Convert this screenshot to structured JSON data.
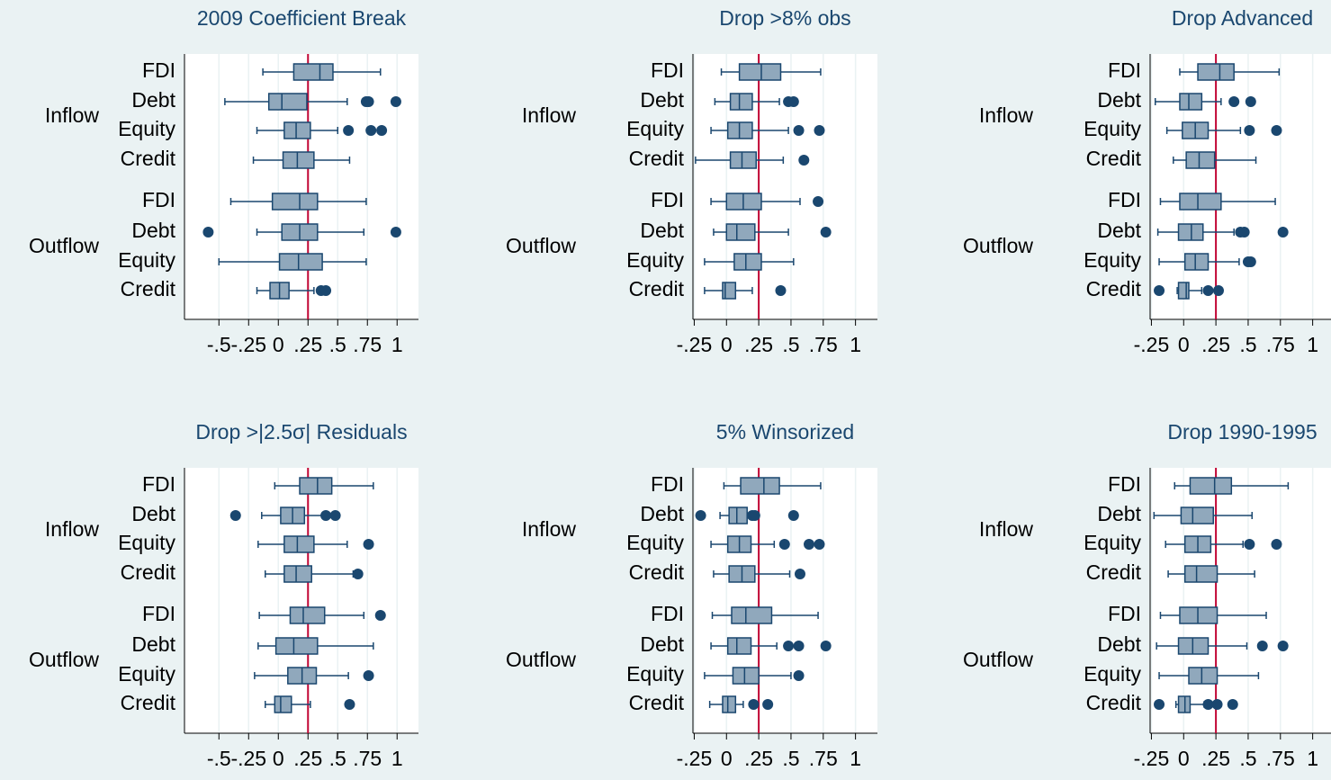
{
  "chart_data": [
    {
      "type": "boxplot",
      "title": "2009 Coefficient Break",
      "xlim": [
        -0.79,
        1.18
      ],
      "xticks": [
        {
          "value": -0.5,
          "label": "-.5"
        },
        {
          "value": -0.25,
          "label": "-.25"
        },
        0,
        {
          "value": 0.25,
          "label": ".25"
        },
        {
          "value": 0.5,
          "label": ".5"
        },
        {
          "value": 0.75,
          "label": ".75"
        },
        1
      ],
      "reference_line": 0.25,
      "color": "#90a8bc",
      "edge_color": "#1a476f",
      "reference_color": "#c10534",
      "grid": true,
      "groups": [
        {
          "label": "Inflow",
          "categories": [
            "FDI",
            "Debt",
            "Equity",
            "Credit"
          ],
          "boxes": [
            {
              "whisker_low": -0.13,
              "q1": 0.13,
              "median": 0.35,
              "q3": 0.46,
              "whisker_high": 0.86,
              "outliers": []
            },
            {
              "whisker_low": -0.45,
              "q1": -0.08,
              "median": 0.03,
              "q3": 0.24,
              "whisker_high": 0.58,
              "outliers": [
                0.74,
                0.76,
                0.99
              ]
            },
            {
              "whisker_low": -0.18,
              "q1": 0.05,
              "median": 0.15,
              "q3": 0.27,
              "whisker_high": 0.5,
              "outliers": [
                0.59,
                0.78,
                0.87
              ]
            },
            {
              "whisker_low": -0.21,
              "q1": 0.04,
              "median": 0.16,
              "q3": 0.3,
              "whisker_high": 0.6,
              "outliers": []
            }
          ]
        },
        {
          "label": "Outflow",
          "categories": [
            "FDI",
            "Debt",
            "Equity",
            "Credit"
          ],
          "boxes": [
            {
              "whisker_low": -0.4,
              "q1": -0.05,
              "median": 0.18,
              "q3": 0.33,
              "whisker_high": 0.74,
              "outliers": []
            },
            {
              "whisker_low": -0.18,
              "q1": 0.03,
              "median": 0.18,
              "q3": 0.33,
              "whisker_high": 0.72,
              "outliers": [
                -0.59,
                0.99
              ]
            },
            {
              "whisker_low": -0.5,
              "q1": 0.01,
              "median": 0.17,
              "q3": 0.37,
              "whisker_high": 0.74,
              "outliers": []
            },
            {
              "whisker_low": -0.18,
              "q1": -0.07,
              "median": 0.01,
              "q3": 0.09,
              "whisker_high": 0.3,
              "outliers": [
                0.36,
                0.4
              ]
            }
          ]
        }
      ]
    },
    {
      "type": "boxplot",
      "title": "Drop >8% obs",
      "xlim": [
        -0.26,
        1.17
      ],
      "xticks": [
        {
          "value": -0.25,
          "label": "-.25"
        },
        0,
        {
          "value": 0.25,
          "label": ".25"
        },
        {
          "value": 0.5,
          "label": ".5"
        },
        {
          "value": 0.75,
          "label": ".75"
        },
        1
      ],
      "reference_line": 0.25,
      "color": "#90a8bc",
      "edge_color": "#1a476f",
      "reference_color": "#c10534",
      "grid": true,
      "groups": [
        {
          "label": "Inflow",
          "categories": [
            "FDI",
            "Debt",
            "Equity",
            "Credit"
          ],
          "boxes": [
            {
              "whisker_low": -0.04,
              "q1": 0.1,
              "median": 0.27,
              "q3": 0.42,
              "whisker_high": 0.73,
              "outliers": []
            },
            {
              "whisker_low": -0.09,
              "q1": 0.03,
              "median": 0.1,
              "q3": 0.2,
              "whisker_high": 0.41,
              "outliers": [
                0.48,
                0.52
              ]
            },
            {
              "whisker_low": -0.12,
              "q1": 0.01,
              "median": 0.1,
              "q3": 0.2,
              "whisker_high": 0.48,
              "outliers": [
                0.56,
                0.72
              ]
            },
            {
              "whisker_low": -0.24,
              "q1": 0.03,
              "median": 0.12,
              "q3": 0.23,
              "whisker_high": 0.44,
              "outliers": [
                0.6
              ]
            }
          ]
        },
        {
          "label": "Outflow",
          "categories": [
            "FDI",
            "Debt",
            "Equity",
            "Credit"
          ],
          "boxes": [
            {
              "whisker_low": -0.12,
              "q1": 0,
              "median": 0.13,
              "q3": 0.27,
              "whisker_high": 0.57,
              "outliers": [
                0.71
              ]
            },
            {
              "whisker_low": -0.1,
              "q1": 0,
              "median": 0.08,
              "q3": 0.22,
              "whisker_high": 0.48,
              "outliers": [
                0.77
              ]
            },
            {
              "whisker_low": -0.17,
              "q1": 0.06,
              "median": 0.15,
              "q3": 0.27,
              "whisker_high": 0.52,
              "outliers": []
            },
            {
              "whisker_low": -0.17,
              "q1": -0.03,
              "median": -0.01,
              "q3": 0.07,
              "whisker_high": 0.2,
              "outliers": [
                0.42
              ]
            }
          ]
        }
      ]
    },
    {
      "type": "boxplot",
      "title": "Drop Advanced",
      "xlim": [
        -0.26,
        1.17
      ],
      "xticks": [
        {
          "value": -0.25,
          "label": "-.25"
        },
        0,
        {
          "value": 0.25,
          "label": ".25"
        },
        {
          "value": 0.5,
          "label": ".5"
        },
        {
          "value": 0.75,
          "label": ".75"
        },
        1
      ],
      "reference_line": 0.25,
      "color": "#90a8bc",
      "edge_color": "#1a476f",
      "reference_color": "#c10534",
      "grid": true,
      "groups": [
        {
          "label": "Inflow",
          "categories": [
            "FDI",
            "Debt",
            "Equity",
            "Credit"
          ],
          "boxes": [
            {
              "whisker_low": -0.03,
              "q1": 0.11,
              "median": 0.28,
              "q3": 0.39,
              "whisker_high": 0.74,
              "outliers": []
            },
            {
              "whisker_low": -0.22,
              "q1": -0.03,
              "median": 0.04,
              "q3": 0.14,
              "whisker_high": 0.29,
              "outliers": [
                0.39,
                0.52
              ]
            },
            {
              "whisker_low": -0.13,
              "q1": -0.01,
              "median": 0.09,
              "q3": 0.19,
              "whisker_high": 0.44,
              "outliers": [
                0.51,
                0.72
              ]
            },
            {
              "whisker_low": -0.08,
              "q1": 0.02,
              "median": 0.12,
              "q3": 0.24,
              "whisker_high": 0.56,
              "outliers": []
            }
          ]
        },
        {
          "label": "Outflow",
          "categories": [
            "FDI",
            "Debt",
            "Equity",
            "Credit"
          ],
          "boxes": [
            {
              "whisker_low": -0.18,
              "q1": -0.03,
              "median": 0.11,
              "q3": 0.29,
              "whisker_high": 0.71,
              "outliers": []
            },
            {
              "whisker_low": -0.2,
              "q1": -0.04,
              "median": 0.06,
              "q3": 0.15,
              "whisker_high": 0.39,
              "outliers": [
                0.44,
                0.47,
                0.77
              ]
            },
            {
              "whisker_low": -0.19,
              "q1": 0.01,
              "median": 0.09,
              "q3": 0.19,
              "whisker_high": 0.43,
              "outliers": [
                0.5,
                0.52
              ]
            },
            {
              "whisker_low": -0.05,
              "q1": -0.04,
              "median": 0.02,
              "q3": 0.04,
              "whisker_high": 0.14,
              "outliers": [
                -0.19,
                0.19,
                0.27
              ]
            }
          ]
        }
      ]
    },
    {
      "type": "boxplot",
      "title": "Drop >|2.5σ| Residuals",
      "xlim": [
        -0.79,
        1.18
      ],
      "xticks": [
        {
          "value": -0.5,
          "label": "-.5"
        },
        {
          "value": -0.25,
          "label": "-.25"
        },
        0,
        {
          "value": 0.25,
          "label": ".25"
        },
        {
          "value": 0.5,
          "label": ".5"
        },
        {
          "value": 0.75,
          "label": ".75"
        },
        1
      ],
      "reference_line": 0.25,
      "color": "#90a8bc",
      "edge_color": "#1a476f",
      "reference_color": "#c10534",
      "grid": true,
      "groups": [
        {
          "label": "Inflow",
          "categories": [
            "FDI",
            "Debt",
            "Equity",
            "Credit"
          ],
          "boxes": [
            {
              "whisker_low": -0.03,
              "q1": 0.18,
              "median": 0.33,
              "q3": 0.45,
              "whisker_high": 0.8,
              "outliers": []
            },
            {
              "whisker_low": -0.14,
              "q1": 0.02,
              "median": 0.12,
              "q3": 0.22,
              "whisker_high": 0.5,
              "outliers": [
                -0.36,
                0.4,
                0.48
              ]
            },
            {
              "whisker_low": -0.17,
              "q1": 0.05,
              "median": 0.16,
              "q3": 0.3,
              "whisker_high": 0.58,
              "outliers": [
                0.76
              ]
            },
            {
              "whisker_low": -0.11,
              "q1": 0.05,
              "median": 0.15,
              "q3": 0.28,
              "whisker_high": 0.63,
              "outliers": [
                0.67
              ]
            }
          ]
        },
        {
          "label": "Outflow",
          "categories": [
            "FDI",
            "Debt",
            "Equity",
            "Credit"
          ],
          "boxes": [
            {
              "whisker_low": -0.16,
              "q1": 0.1,
              "median": 0.21,
              "q3": 0.39,
              "whisker_high": 0.72,
              "outliers": [
                0.86
              ]
            },
            {
              "whisker_low": -0.17,
              "q1": -0.02,
              "median": 0.13,
              "q3": 0.33,
              "whisker_high": 0.8,
              "outliers": []
            },
            {
              "whisker_low": -0.2,
              "q1": 0.08,
              "median": 0.2,
              "q3": 0.32,
              "whisker_high": 0.59,
              "outliers": [
                0.76
              ]
            },
            {
              "whisker_low": -0.11,
              "q1": -0.03,
              "median": 0.02,
              "q3": 0.11,
              "whisker_high": 0.27,
              "outliers": [
                0.6
              ]
            }
          ]
        }
      ]
    },
    {
      "type": "boxplot",
      "title": "5% Winsorized",
      "xlim": [
        -0.26,
        1.17
      ],
      "xticks": [
        {
          "value": -0.25,
          "label": "-.25"
        },
        0,
        {
          "value": 0.25,
          "label": ".25"
        },
        {
          "value": 0.5,
          "label": ".5"
        },
        {
          "value": 0.75,
          "label": ".75"
        },
        1
      ],
      "reference_line": 0.25,
      "color": "#90a8bc",
      "edge_color": "#1a476f",
      "reference_color": "#c10534",
      "grid": true,
      "groups": [
        {
          "label": "Inflow",
          "categories": [
            "FDI",
            "Debt",
            "Equity",
            "Credit"
          ],
          "boxes": [
            {
              "whisker_low": -0.02,
              "q1": 0.11,
              "median": 0.29,
              "q3": 0.41,
              "whisker_high": 0.73,
              "outliers": []
            },
            {
              "whisker_low": -0.05,
              "q1": 0.02,
              "median": 0.08,
              "q3": 0.16,
              "whisker_high": 0.18,
              "outliers": [
                -0.2,
                0.2,
                0.22,
                0.52
              ]
            },
            {
              "whisker_low": -0.12,
              "q1": 0.01,
              "median": 0.1,
              "q3": 0.19,
              "whisker_high": 0.37,
              "outliers": [
                0.45,
                0.64,
                0.72
              ]
            },
            {
              "whisker_low": -0.1,
              "q1": 0.02,
              "median": 0.12,
              "q3": 0.22,
              "whisker_high": 0.49,
              "outliers": [
                0.57
              ]
            }
          ]
        },
        {
          "label": "Outflow",
          "categories": [
            "FDI",
            "Debt",
            "Equity",
            "Credit"
          ],
          "boxes": [
            {
              "whisker_low": -0.11,
              "q1": 0.04,
              "median": 0.15,
              "q3": 0.35,
              "whisker_high": 0.71,
              "outliers": []
            },
            {
              "whisker_low": -0.12,
              "q1": 0.01,
              "median": 0.08,
              "q3": 0.19,
              "whisker_high": 0.39,
              "outliers": [
                0.48,
                0.56,
                0.77
              ]
            },
            {
              "whisker_low": -0.17,
              "q1": 0.05,
              "median": 0.14,
              "q3": 0.25,
              "whisker_high": 0.5,
              "outliers": [
                0.56
              ]
            },
            {
              "whisker_low": -0.13,
              "q1": -0.03,
              "median": 0.01,
              "q3": 0.07,
              "whisker_high": 0.13,
              "outliers": [
                0.21,
                0.32
              ]
            }
          ]
        }
      ]
    },
    {
      "type": "boxplot",
      "title": "Drop 1990-1995",
      "xlim": [
        -0.26,
        1.17
      ],
      "xticks": [
        {
          "value": -0.25,
          "label": "-.25"
        },
        0,
        {
          "value": 0.25,
          "label": ".25"
        },
        {
          "value": 0.5,
          "label": ".5"
        },
        {
          "value": 0.75,
          "label": ".75"
        },
        1
      ],
      "reference_line": 0.25,
      "color": "#90a8bc",
      "edge_color": "#1a476f",
      "reference_color": "#c10534",
      "grid": true,
      "groups": [
        {
          "label": "Inflow",
          "categories": [
            "FDI",
            "Debt",
            "Equity",
            "Credit"
          ],
          "boxes": [
            {
              "whisker_low": -0.07,
              "q1": 0.05,
              "median": 0.24,
              "q3": 0.37,
              "whisker_high": 0.81,
              "outliers": []
            },
            {
              "whisker_low": -0.23,
              "q1": -0.02,
              "median": 0.07,
              "q3": 0.23,
              "whisker_high": 0.53,
              "outliers": []
            },
            {
              "whisker_low": -0.14,
              "q1": 0.01,
              "median": 0.11,
              "q3": 0.21,
              "whisker_high": 0.46,
              "outliers": [
                0.51,
                0.72
              ]
            },
            {
              "whisker_low": -0.12,
              "q1": 0.01,
              "median": 0.1,
              "q3": 0.26,
              "whisker_high": 0.55,
              "outliers": []
            }
          ]
        },
        {
          "label": "Outflow",
          "categories": [
            "FDI",
            "Debt",
            "Equity",
            "Credit"
          ],
          "boxes": [
            {
              "whisker_low": -0.18,
              "q1": -0.03,
              "median": 0.11,
              "q3": 0.26,
              "whisker_high": 0.64,
              "outliers": []
            },
            {
              "whisker_low": -0.21,
              "q1": -0.04,
              "median": 0.07,
              "q3": 0.19,
              "whisker_high": 0.49,
              "outliers": [
                0.61,
                0.77
              ]
            },
            {
              "whisker_low": -0.19,
              "q1": 0.04,
              "median": 0.14,
              "q3": 0.26,
              "whisker_high": 0.58,
              "outliers": []
            },
            {
              "whisker_low": -0.06,
              "q1": -0.04,
              "median": 0.01,
              "q3": 0.05,
              "whisker_high": 0.16,
              "outliers": [
                -0.19,
                0.19,
                0.26,
                0.38
              ]
            }
          ]
        }
      ]
    }
  ]
}
